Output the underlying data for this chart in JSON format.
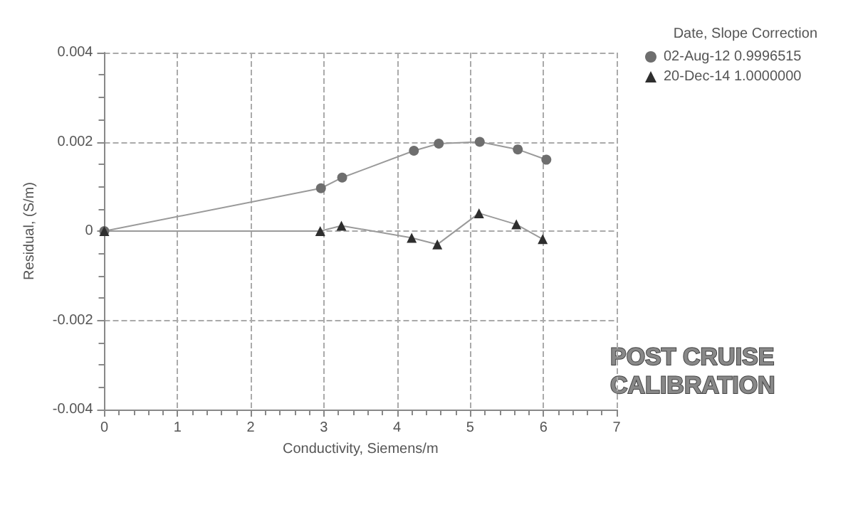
{
  "chart_data": {
    "type": "line",
    "xlabel": "Conductivity, Siemens/m",
    "ylabel": "Residual, (S/m)",
    "legend_title": "Date, Slope Correction",
    "series": [
      {
        "name": "02-Aug-12 0.9996515",
        "color": "#6e6e6e",
        "marker": "circle",
        "x": [
          0,
          2.96,
          3.25,
          4.23,
          4.57,
          5.13,
          5.65,
          6.04
        ],
        "values": [
          0,
          0.00096,
          0.0012,
          0.0018,
          0.00196,
          0.002,
          0.00183,
          0.0016
        ]
      },
      {
        "name": "20-Dec-14 1.0000000",
        "color": "#2e2e2e",
        "marker": "triangle",
        "x": [
          0,
          2.95,
          3.24,
          4.2,
          4.55,
          5.12,
          5.63,
          5.99
        ],
        "values": [
          0,
          0,
          0.00012,
          -0.00015,
          -0.0003,
          0.0004,
          0.00015,
          -0.00018
        ]
      }
    ],
    "xlim": [
      0,
      7
    ],
    "xticks": [
      0,
      1,
      2,
      3,
      4,
      5,
      6,
      7
    ],
    "ylim": [
      -0.004,
      0.004
    ],
    "yticks": [
      -0.004,
      -0.002,
      0,
      0.002,
      0.004
    ],
    "grid": true,
    "legend": "top right",
    "line_style": "solid",
    "annotations": [
      "POST CRUISE\nCALIBRATION"
    ]
  }
}
